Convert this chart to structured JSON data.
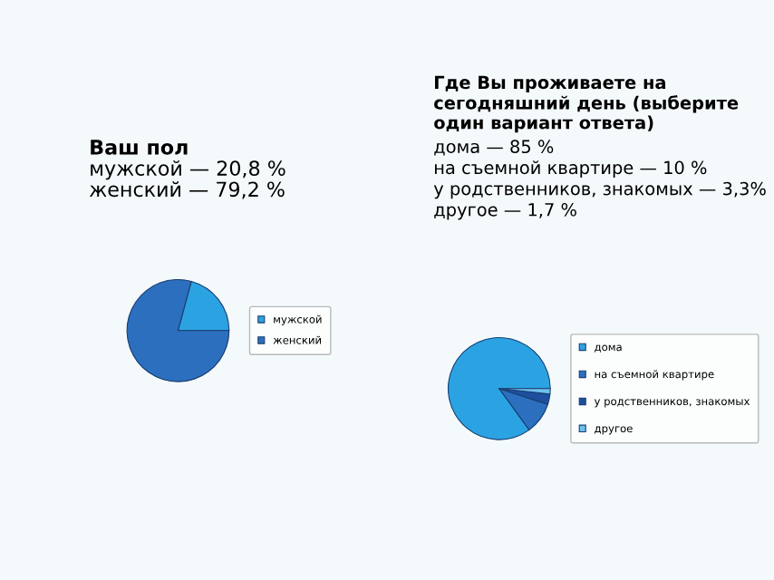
{
  "chart_data": [
    {
      "type": "pie",
      "title": "Ваш пол",
      "annotations": [
        "мужской — 20,8 %",
        "женский — 79,2 %"
      ],
      "categories": [
        "мужской",
        "женский"
      ],
      "values": [
        20.8,
        79.2
      ],
      "colors": [
        "#2ba3e3",
        "#2c6fbf"
      ],
      "legend": "right"
    },
    {
      "type": "pie",
      "title": "Где Вы проживаете на сегодняшний день (выберите один вариант ответа)",
      "annotations": [
        "дома — 85 %",
        "на съемной квартире — 10 %",
        "у родственников, знакомых — 3,3%",
        "другое — 1,7 %"
      ],
      "categories": [
        "дома",
        "на съемной квартире",
        "у родственников, знакомых",
        "другое"
      ],
      "values": [
        85,
        10,
        3.3,
        1.7
      ],
      "colors": [
        "#2ba3e3",
        "#2c6fbf",
        "#1d4f9e",
        "#6cc0ee"
      ],
      "legend": "right"
    }
  ]
}
